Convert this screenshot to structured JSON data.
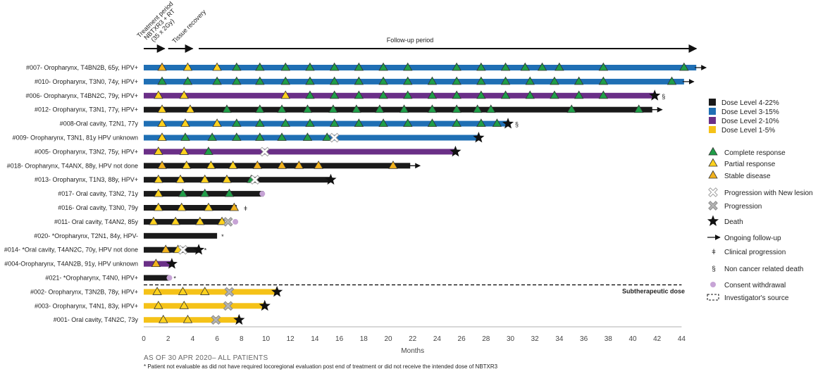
{
  "chart_data": {
    "type": "swimmer",
    "xlabel": "Months",
    "xlim": [
      0,
      44
    ],
    "xticks": [
      0,
      2,
      4,
      6,
      8,
      10,
      12,
      14,
      16,
      18,
      20,
      22,
      24,
      26,
      28,
      30,
      32,
      34,
      36,
      38,
      40,
      42,
      44
    ],
    "periods": [
      {
        "label": "Treatment period",
        "start": 0,
        "end": 1.7
      },
      {
        "label": "NBTXR3 + RT",
        "start": 0,
        "end": 1.7
      },
      {
        "label": "(35 x 2Gy)",
        "start": 0,
        "end": 1.7
      },
      {
        "label": "Tissue recovery",
        "start": 2.0,
        "end": 4.0
      },
      {
        "label": "Follow-up period",
        "start": 4.5,
        "end": 45.2
      }
    ],
    "subtherapeutic_label": "Subtherapeutic dose",
    "dose_colors": {
      "DL4": "#1a1a1a",
      "DL3": "#1f6fb4",
      "DL2": "#6a2f87",
      "DL1": "#f5c218"
    },
    "patients": [
      {
        "label": "#007- Oropharynx, T4BN2B, 65y, HPV+",
        "dose": "DL3",
        "end": 45.2,
        "ongoing": true,
        "mark": "",
        "events": [
          [
            1.5,
            "sd"
          ],
          [
            3.6,
            "pr"
          ],
          [
            6,
            "pr"
          ],
          [
            7.6,
            "cr"
          ],
          [
            9.5,
            "cr"
          ],
          [
            11.6,
            "cr"
          ],
          [
            13.6,
            "cr"
          ],
          [
            15.6,
            "cr"
          ],
          [
            17.6,
            "cr"
          ],
          [
            19.6,
            "cr"
          ],
          [
            21.6,
            "cr"
          ],
          [
            25.6,
            "cr"
          ],
          [
            27.6,
            "cr"
          ],
          [
            29.6,
            "cr"
          ],
          [
            31.2,
            "cr"
          ],
          [
            32.6,
            "cr"
          ],
          [
            34,
            "cr"
          ],
          [
            37.6,
            "cr"
          ],
          [
            44.2,
            "cr"
          ]
        ]
      },
      {
        "label": "#010- Oropharynx, T3N0, 74y, HPV+",
        "dose": "DL3",
        "end": 44.2,
        "ongoing": true,
        "mark": "",
        "events": [
          [
            1.5,
            "cr"
          ],
          [
            3.6,
            "cr"
          ],
          [
            6,
            "cr"
          ],
          [
            7.6,
            "cr"
          ],
          [
            9.5,
            "cr"
          ],
          [
            11.6,
            "cr"
          ],
          [
            13.6,
            "cr"
          ],
          [
            15.6,
            "cr"
          ],
          [
            17.6,
            "cr"
          ],
          [
            19.6,
            "cr"
          ],
          [
            21.6,
            "cr"
          ],
          [
            23.6,
            "cr"
          ],
          [
            25.6,
            "cr"
          ],
          [
            27.6,
            "cr"
          ],
          [
            29.6,
            "cr"
          ],
          [
            31.6,
            "cr"
          ],
          [
            33.6,
            "cr"
          ],
          [
            35.6,
            "cr"
          ],
          [
            37.6,
            "cr"
          ],
          [
            43.2,
            "cr"
          ]
        ]
      },
      {
        "label": "#006- Oropharynx, T4BN2C, 79y, HPV+",
        "dose": "DL2",
        "end": 41.8,
        "ongoing": false,
        "mark": "§",
        "events": [
          [
            1.2,
            "pr"
          ],
          [
            3.3,
            "pr"
          ],
          [
            11.6,
            "pr"
          ],
          [
            13.6,
            "cr"
          ],
          [
            15.6,
            "cr"
          ],
          [
            17.6,
            "cr"
          ],
          [
            19.6,
            "cr"
          ],
          [
            21.6,
            "cr"
          ],
          [
            23.6,
            "cr"
          ],
          [
            25.6,
            "cr"
          ],
          [
            27.6,
            "cr"
          ],
          [
            29.6,
            "cr"
          ],
          [
            31.6,
            "cr"
          ],
          [
            33.6,
            "cr"
          ],
          [
            35.6,
            "cr"
          ],
          [
            37.6,
            "cr"
          ],
          [
            41.8,
            "death"
          ]
        ]
      },
      {
        "label": "#012- Oropharynx, T3N1, 77y, HPV+",
        "dose": "DL4",
        "end": 41.6,
        "ongoing": true,
        "mark": "",
        "events": [
          [
            1.5,
            "pr"
          ],
          [
            3.8,
            "pr"
          ],
          [
            6.8,
            "cr"
          ],
          [
            9.5,
            "cr"
          ],
          [
            11.3,
            "cr"
          ],
          [
            13.4,
            "cr"
          ],
          [
            15.5,
            "cr"
          ],
          [
            17.4,
            "cr"
          ],
          [
            19.3,
            "cr"
          ],
          [
            21.3,
            "cr"
          ],
          [
            23.6,
            "cr"
          ],
          [
            25.6,
            "cr"
          ],
          [
            27.3,
            "cr"
          ],
          [
            28.4,
            "cr"
          ],
          [
            35,
            "cr"
          ],
          [
            40.5,
            "cr"
          ]
        ]
      },
      {
        "label": "#008-Oral cavity, T2N1, 77y",
        "dose": "DL3",
        "end": 29.8,
        "ongoing": false,
        "mark": "§",
        "events": [
          [
            1.5,
            "pr"
          ],
          [
            3.4,
            "pr"
          ],
          [
            6,
            "pr"
          ],
          [
            7.6,
            "cr"
          ],
          [
            9.5,
            "cr"
          ],
          [
            11.6,
            "cr"
          ],
          [
            13.6,
            "cr"
          ],
          [
            15.6,
            "cr"
          ],
          [
            17.6,
            "cr"
          ],
          [
            19.6,
            "cr"
          ],
          [
            21.6,
            "cr"
          ],
          [
            23.6,
            "cr"
          ],
          [
            25.6,
            "cr"
          ],
          [
            27.6,
            "cr"
          ],
          [
            28.9,
            "cr"
          ],
          [
            29.8,
            "death"
          ]
        ]
      },
      {
        "label": "#009- Oropharynx, T3N1, 81y HPV unknown",
        "dose": "DL3",
        "end": 27.4,
        "ongoing": false,
        "mark": "",
        "events": [
          [
            1.5,
            "pr"
          ],
          [
            3.4,
            "cr"
          ],
          [
            5.6,
            "cr"
          ],
          [
            7.6,
            "cr"
          ],
          [
            9.5,
            "cr"
          ],
          [
            11.3,
            "cr"
          ],
          [
            13.4,
            "cr"
          ],
          [
            15,
            "cr"
          ],
          [
            15.6,
            "pnl"
          ],
          [
            27.4,
            "death"
          ]
        ]
      },
      {
        "label": "#005- Oropharynx, T3N2, 75y, HPV+",
        "dose": "DL2",
        "end": 25.5,
        "ongoing": false,
        "mark": "",
        "events": [
          [
            1.2,
            "pr"
          ],
          [
            3.3,
            "pr"
          ],
          [
            5.3,
            "cr"
          ],
          [
            9.9,
            "pnl"
          ],
          [
            25.5,
            "death"
          ]
        ]
      },
      {
        "label": "#018- Oropharynx, T4ANX, 88y, HPV not done",
        "dose": "DL4",
        "end": 21.8,
        "ongoing": true,
        "mark": "",
        "events": [
          [
            1.5,
            "sd"
          ],
          [
            3.5,
            "pr"
          ],
          [
            5.5,
            "pr"
          ],
          [
            7.3,
            "pr"
          ],
          [
            9.3,
            "sd"
          ],
          [
            11.3,
            "sd"
          ],
          [
            12.7,
            "sd"
          ],
          [
            14.3,
            "sd"
          ],
          [
            20.4,
            "sd"
          ]
        ]
      },
      {
        "label": "#013- Oropharynx, T1N3, 88y, HPV+",
        "dose": "DL4",
        "end": 15.3,
        "ongoing": false,
        "mark": "",
        "events": [
          [
            1.2,
            "pr"
          ],
          [
            3,
            "pr"
          ],
          [
            5,
            "pr"
          ],
          [
            6.8,
            "pr"
          ],
          [
            8.8,
            "cr"
          ],
          [
            9.1,
            "pnl"
          ],
          [
            15.3,
            "death"
          ]
        ]
      },
      {
        "label": "#017- Oral cavity, T3N2, 71y",
        "dose": "DL4",
        "end": 9.8,
        "ongoing": false,
        "mark": "",
        "events": [
          [
            1.2,
            "pr"
          ],
          [
            3.2,
            "cr"
          ],
          [
            5,
            "cr"
          ],
          [
            7,
            "cr"
          ],
          [
            9.7,
            "consent"
          ]
        ]
      },
      {
        "label": "#016- Oral cavity, T3N0, 79y",
        "dose": "DL4",
        "end": 7.6,
        "ongoing": false,
        "mark": "ǂ",
        "events": [
          [
            1.2,
            "pr"
          ],
          [
            3.1,
            "pr"
          ],
          [
            5.3,
            "pr"
          ],
          [
            7.4,
            "sd"
          ]
        ]
      },
      {
        "label": "#011- Oral cavity, T4AN2, 85y",
        "dose": "DL4",
        "end": 6.6,
        "ongoing": false,
        "mark": "",
        "events": [
          [
            0.8,
            "pr"
          ],
          [
            2.6,
            "pr"
          ],
          [
            4.6,
            "pr"
          ],
          [
            6.4,
            "pr"
          ],
          [
            6.9,
            "prog"
          ],
          [
            7.5,
            "consent"
          ]
        ]
      },
      {
        "label": "#020- *Oropharynx, T2N1, 84y, HPV-",
        "dose": "DL4",
        "end": 6,
        "ongoing": false,
        "mark": "*",
        "events": []
      },
      {
        "label": "#014- *Oral cavity, T4AN2C, 70y, HPV not done",
        "dose": "DL4",
        "end": 4.6,
        "ongoing": false,
        "mark": "*",
        "events": [
          [
            1.8,
            "sd"
          ],
          [
            2.8,
            "pr"
          ],
          [
            3.2,
            "pnl"
          ],
          [
            4.5,
            "death"
          ]
        ]
      },
      {
        "label": "#004-Oropharynx, T4AN2B, 91y, HPV unknown",
        "dose": "DL2",
        "end": 2.3,
        "ongoing": false,
        "mark": "",
        "events": [
          [
            1,
            "sd"
          ],
          [
            2.3,
            "death"
          ]
        ]
      },
      {
        "label": "#021- *Oropharynx, T4N0, HPV+",
        "dose": "DL4",
        "end": 2.1,
        "ongoing": false,
        "mark": "*",
        "events": [
          [
            2.1,
            "consent"
          ]
        ]
      },
      {
        "label": "#002- Oropharynx, T3N2B, 78y, HPV+",
        "dose": "DL1",
        "end": 10.9,
        "ongoing": false,
        "mark": "",
        "events": [
          [
            1.1,
            "pr"
          ],
          [
            3.2,
            "pr"
          ],
          [
            5,
            "pr"
          ],
          [
            7,
            "prog"
          ],
          [
            10.9,
            "death"
          ]
        ]
      },
      {
        "label": "#003- Oropharynx, T4N1, 83y, HPV+",
        "dose": "DL1",
        "end": 9.9,
        "ongoing": false,
        "mark": "",
        "events": [
          [
            1.2,
            "pr"
          ],
          [
            3.3,
            "pr"
          ],
          [
            6.9,
            "prog"
          ],
          [
            9.9,
            "death"
          ]
        ]
      },
      {
        "label": "#001- Oral cavity, T4N2C, 73y",
        "dose": "DL1",
        "end": 7.8,
        "ongoing": false,
        "mark": "",
        "events": [
          [
            1.6,
            "pr"
          ],
          [
            3.6,
            "pr"
          ],
          [
            5.9,
            "prog"
          ],
          [
            7.8,
            "death"
          ]
        ]
      }
    ],
    "legend": {
      "dose": [
        {
          "key": "DL4",
          "label": "Dose Level 4-22%"
        },
        {
          "key": "DL3",
          "label": "Dose Level 3-15%"
        },
        {
          "key": "DL2",
          "label": "Dose Level 2-10%"
        },
        {
          "key": "DL1",
          "label": "Dose Level 1-5%"
        }
      ],
      "events": [
        {
          "sym": "cr",
          "label": "Complete response"
        },
        {
          "sym": "pr",
          "label": "Partial response"
        },
        {
          "sym": "sd",
          "label": "Stable disease"
        },
        {
          "sym": "pnl",
          "label": "Progression with New lesion"
        },
        {
          "sym": "prog",
          "label": "Progression"
        },
        {
          "sym": "death",
          "label": "Death"
        },
        {
          "sym": "arrow",
          "label": "Ongoing follow-up"
        },
        {
          "sym": "cprog",
          "label": "Clinical progression",
          "glyph": "ǂ"
        },
        {
          "sym": "noncancer",
          "label": "Non cancer related death",
          "glyph": "§"
        },
        {
          "sym": "consent",
          "label": "Consent withdrawal"
        },
        {
          "sym": "dash",
          "label": "Investigator's source"
        }
      ]
    },
    "footnotes": {
      "asof": "AS OF 30 APR 2020– ALL PATIENTS",
      "note": "* Patient not evaluable as did not have required locoregional evaluation post end of treatment or did not receive the intended dose of NBTXR3"
    }
  }
}
